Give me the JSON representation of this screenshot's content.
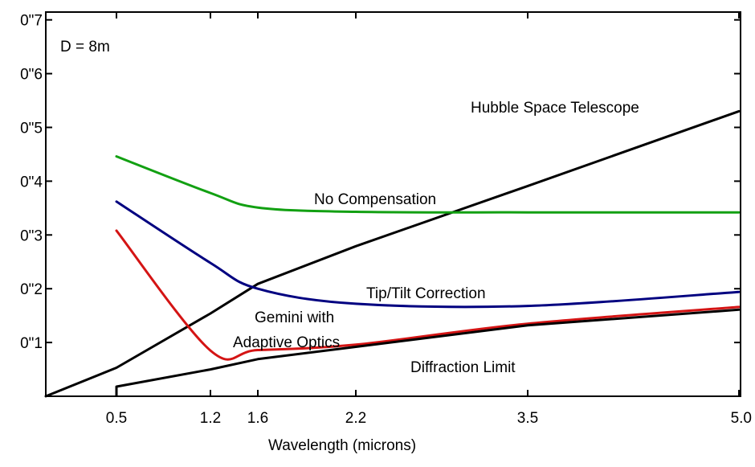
{
  "chart_data": {
    "type": "line",
    "title": "",
    "xlabel": "Wavelength (microns)",
    "ylabel": "",
    "x_tick_labels": [
      "0.5",
      "1.2",
      "1.6",
      "2.2",
      "3.5",
      "5.0"
    ],
    "y_tick_labels": [
      "0\"1",
      "0\"2",
      "0\"3",
      "0\"4",
      "0\"5",
      "0\"6",
      "0\"7"
    ],
    "y_tick_values": [
      0.1,
      0.2,
      0.3,
      0.4,
      0.5,
      0.6,
      0.7
    ],
    "ylim": [
      0,
      0.7
    ],
    "grid": false,
    "annotations": {
      "aperture": "D = 8m",
      "hubble": "Hubble Space Telescope",
      "no_comp": "No Compensation",
      "tiptilt": "Tip/Tilt Correction",
      "gemini_1": "Gemini with",
      "gemini_2": "Adaptive Optics",
      "diffraction": "Diffraction Limit"
    },
    "series": [
      {
        "name": "Hubble Space Telescope",
        "color": "#000000",
        "points": [
          [
            0,
            0.0
          ],
          [
            0.5,
            0.053
          ],
          [
            1.2,
            0.154
          ],
          [
            1.6,
            0.209
          ],
          [
            2.2,
            0.279
          ],
          [
            3.5,
            0.391
          ],
          [
            5.0,
            0.53
          ]
        ]
      },
      {
        "name": "No Compensation",
        "color": "#12a012",
        "points": [
          [
            0.5,
            0.446
          ],
          [
            1.2,
            0.378
          ],
          [
            1.6,
            0.351
          ],
          [
            2.2,
            0.343
          ],
          [
            3.5,
            0.342
          ],
          [
            5.0,
            0.342
          ]
        ]
      },
      {
        "name": "Tip/Tilt Correction",
        "color": "#000080",
        "points": [
          [
            0.5,
            0.362
          ],
          [
            1.2,
            0.248
          ],
          [
            1.6,
            0.2
          ],
          [
            2.2,
            0.172
          ],
          [
            3.5,
            0.168
          ],
          [
            5.0,
            0.194
          ]
        ]
      },
      {
        "name": "Gemini with Adaptive Optics",
        "color": "#d41414",
        "points": [
          [
            0.5,
            0.308
          ],
          [
            1.2,
            0.085
          ],
          [
            1.6,
            0.086
          ],
          [
            2.2,
            0.096
          ],
          [
            3.5,
            0.135
          ],
          [
            5.0,
            0.166
          ]
        ]
      },
      {
        "name": "Diffraction Limit",
        "color": "#000000",
        "points": [
          [
            0.5,
            0.018
          ],
          [
            1.2,
            0.05
          ],
          [
            1.6,
            0.069
          ],
          [
            2.2,
            0.092
          ],
          [
            3.5,
            0.132
          ],
          [
            5.0,
            0.161
          ]
        ]
      }
    ]
  }
}
